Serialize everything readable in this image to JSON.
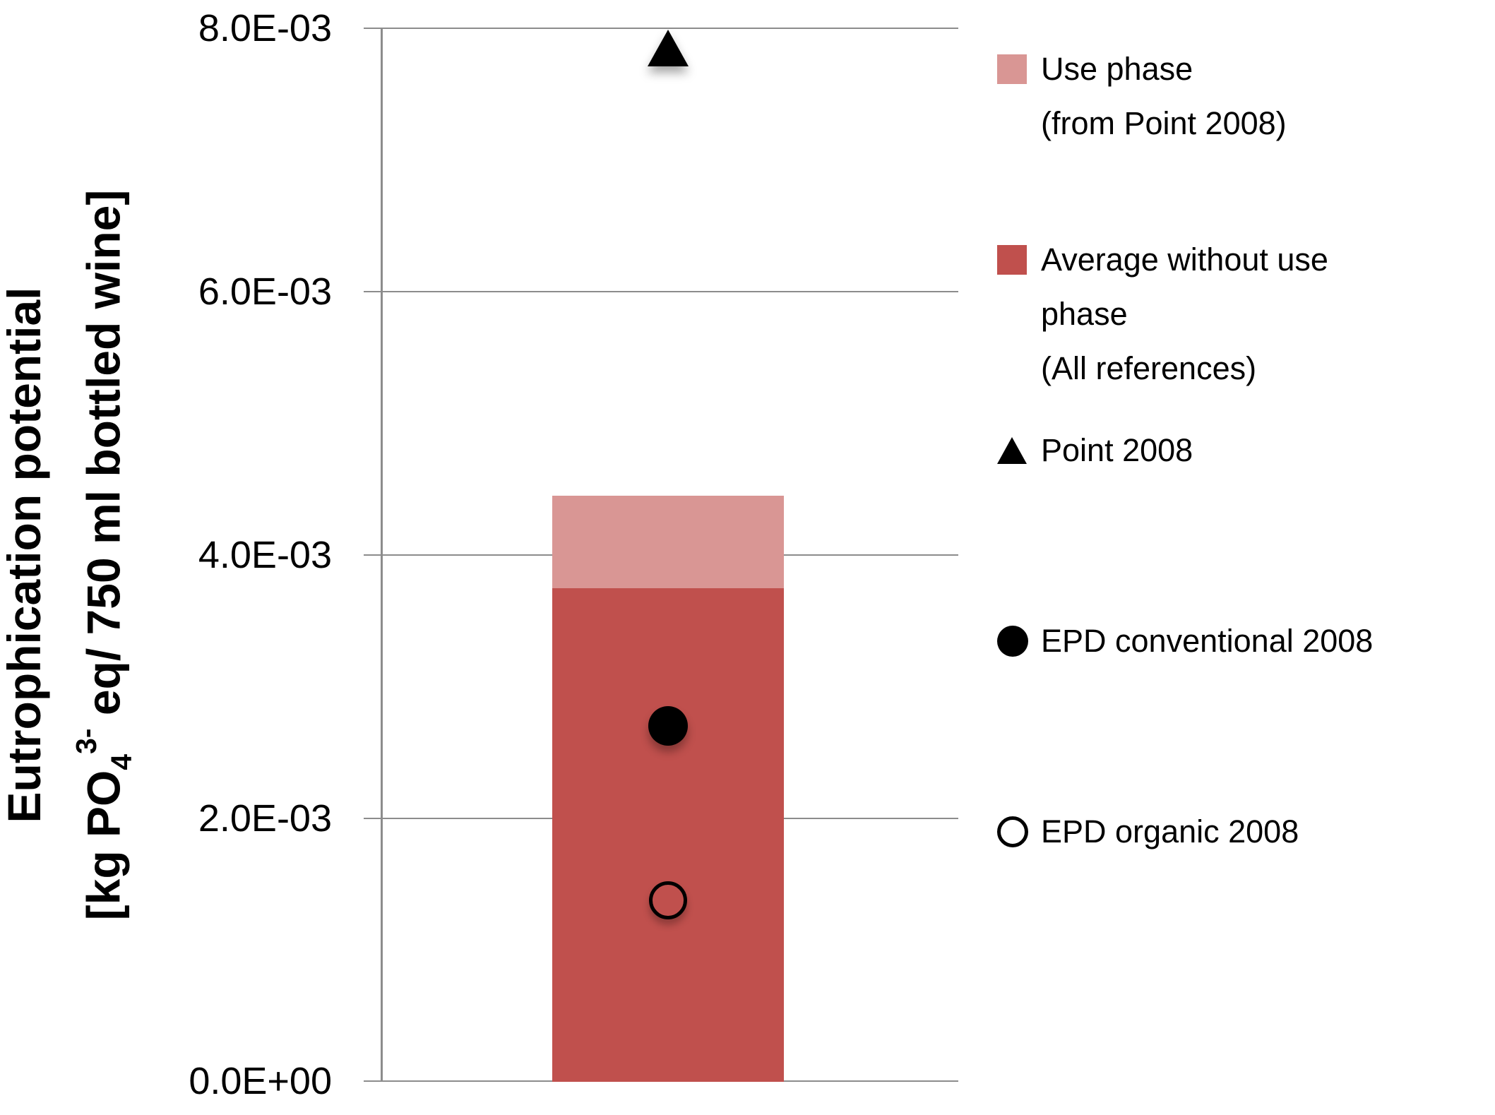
{
  "figure": {
    "y_axis": {
      "title_line1": "Eutrophication potential",
      "unit_prefix": "[kg PO",
      "unit_sub": "4",
      "unit_sup": "3-",
      "unit_suffix": " eq/ 750 ml bottled wine]",
      "tick_labels": [
        "8.0E-03",
        "6.0E-03",
        "4.0E-03",
        "2.0E-03",
        "0.0E+00"
      ]
    },
    "legend": {
      "items": [
        {
          "marker": "pink-square",
          "line1": "Use phase",
          "line2": "(from Point 2008)",
          "line3": ""
        },
        {
          "marker": "darkred-square",
          "line1": "Average without use",
          "line2": "phase",
          "line3": "(All references)"
        },
        {
          "marker": "black-triangle",
          "line1": "Point 2008",
          "line2": "",
          "line3": ""
        },
        {
          "marker": "filled-circle",
          "line1": "EPD conventional 2008",
          "line2": "",
          "line3": ""
        },
        {
          "marker": "open-circle",
          "line1": "EPD organic 2008",
          "line2": "",
          "line3": ""
        }
      ]
    },
    "colors": {
      "use_phase": "#d99694",
      "average_without_use_phase": "#c0504d",
      "marker_black": "#000000",
      "gridline_gray": "#8c8c8c"
    }
  },
  "chart_data": {
    "type": "bar",
    "stacked": true,
    "categories": [
      ""
    ],
    "series": [
      {
        "name": "Average without use phase (All references)",
        "values": [
          0.00375
        ],
        "color": "#c0504d"
      },
      {
        "name": "Use phase (from Point 2008)",
        "values": [
          0.0007
        ],
        "color": "#d99694"
      }
    ],
    "points": [
      {
        "name": "Point 2008",
        "marker": "triangle",
        "value": 0.00785
      },
      {
        "name": "EPD conventional 2008",
        "marker": "filled-circle",
        "value": 0.0027
      },
      {
        "name": "EPD organic 2008",
        "marker": "open-circle",
        "value": 0.00138
      }
    ],
    "ylabel": "Eutrophication potential [kg PO4(3-) eq/ 750 ml bottled wine]",
    "ylim": [
      0,
      0.008
    ],
    "ytick_values": [
      0.008,
      0.006,
      0.004,
      0.002,
      0.0
    ],
    "ytick_labels": [
      "8.0E-03",
      "6.0E-03",
      "4.0E-03",
      "2.0E-03",
      "0.0E+00"
    ],
    "grid": true,
    "legend_position": "right"
  }
}
